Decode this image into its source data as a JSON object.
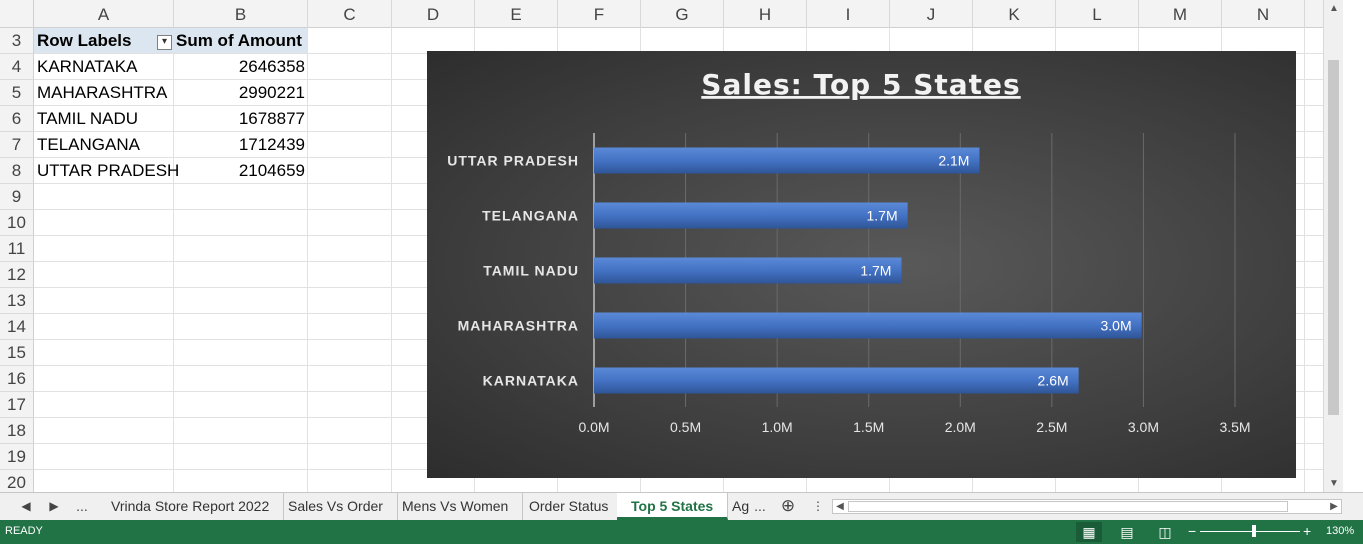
{
  "columns": [
    "A",
    "B",
    "C",
    "D",
    "E",
    "F",
    "G",
    "H",
    "I",
    "J",
    "K",
    "L",
    "M",
    "N"
  ],
  "rows": [
    "3",
    "4",
    "5",
    "6",
    "7",
    "8",
    "9",
    "10",
    "11",
    "12",
    "13",
    "14",
    "15",
    "16",
    "17",
    "18",
    "19",
    "20"
  ],
  "pivot": {
    "header_labels": "Row Labels",
    "header_sum": "Sum of Amount",
    "rows": [
      {
        "state": "KARNATAKA",
        "amount": "2646358"
      },
      {
        "state": "MAHARASHTRA",
        "amount": "2990221"
      },
      {
        "state": "TAMIL NADU",
        "amount": "1678877"
      },
      {
        "state": "TELANGANA",
        "amount": "1712439"
      },
      {
        "state": "UTTAR PRADESH",
        "amount": "2104659"
      }
    ]
  },
  "chart_data": {
    "type": "bar",
    "orientation": "horizontal",
    "title": "Sales: Top 5 States",
    "categories": [
      "UTTAR PRADESH",
      "TELANGANA",
      "TAMIL NADU",
      "MAHARASHTRA",
      "KARNATAKA"
    ],
    "values": [
      2104659,
      1712439,
      1678877,
      2990221,
      2646358
    ],
    "data_labels": [
      "2.1M",
      "1.7M",
      "1.7M",
      "3.0M",
      "2.6M"
    ],
    "x_ticks": [
      "0.0M",
      "0.5M",
      "1.0M",
      "1.5M",
      "2.0M",
      "2.5M",
      "3.0M",
      "3.5M"
    ],
    "xlim": [
      0,
      3500000
    ],
    "grid": true,
    "bar_color": "#4472c4",
    "background_color": "#404040"
  },
  "tabs": {
    "nav_prev": "◀",
    "nav_next": "▶",
    "more": "...",
    "items": [
      "Vrinda Store Report 2022",
      "Sales Vs Order",
      "Mens Vs Women",
      "Order Status",
      "Top 5 States",
      "Ag"
    ],
    "active": "Top 5 States",
    "ellipsis": "...",
    "add": "⊕"
  },
  "status": {
    "ready": "READY",
    "zoom": "130%",
    "zoom_minus": "−",
    "zoom_plus": "+"
  },
  "colors": {
    "accent": "#217346",
    "pivot_header": "#dce6f1"
  }
}
